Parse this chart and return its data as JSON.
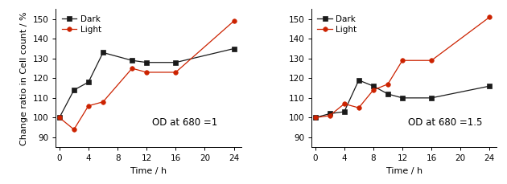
{
  "chart1": {
    "title": "OD at 680 =1",
    "dark_x": [
      0,
      2,
      4,
      6,
      10,
      12,
      16,
      24
    ],
    "dark_y": [
      100,
      114,
      118,
      133,
      129,
      128,
      128,
      135
    ],
    "light_x": [
      0,
      2,
      4,
      6,
      10,
      12,
      16,
      24
    ],
    "light_y": [
      100,
      94,
      106,
      108,
      125,
      123,
      123,
      149
    ]
  },
  "chart2": {
    "title": "OD at 680 =1.5",
    "dark_x": [
      0,
      2,
      4,
      6,
      8,
      10,
      12,
      16,
      24
    ],
    "dark_y": [
      100,
      102,
      103,
      119,
      116,
      112,
      110,
      110,
      116
    ],
    "light_x": [
      0,
      2,
      4,
      6,
      8,
      10,
      12,
      16,
      24
    ],
    "light_y": [
      100,
      101,
      107,
      105,
      114,
      117,
      129,
      129,
      151
    ]
  },
  "ylabel": "Change ratio in Cell count / %",
  "xlabel": "Time / h",
  "ylim": [
    85,
    155
  ],
  "xlim": [
    -0.5,
    25
  ],
  "yticks": [
    90,
    100,
    110,
    120,
    130,
    140,
    150
  ],
  "xticks": [
    0,
    4,
    8,
    12,
    16,
    20,
    24
  ],
  "dark_color": "#1a1a1a",
  "light_color": "#cc2200",
  "legend_dark": "Dark",
  "legend_light": "Light",
  "dark_marker": "s",
  "light_marker": "o",
  "linewidth": 0.9,
  "markersize": 4,
  "bg_color": "#ffffff",
  "title_fontsize": 8.5,
  "label_fontsize": 8,
  "tick_fontsize": 7.5,
  "legend_fontsize": 7.5
}
